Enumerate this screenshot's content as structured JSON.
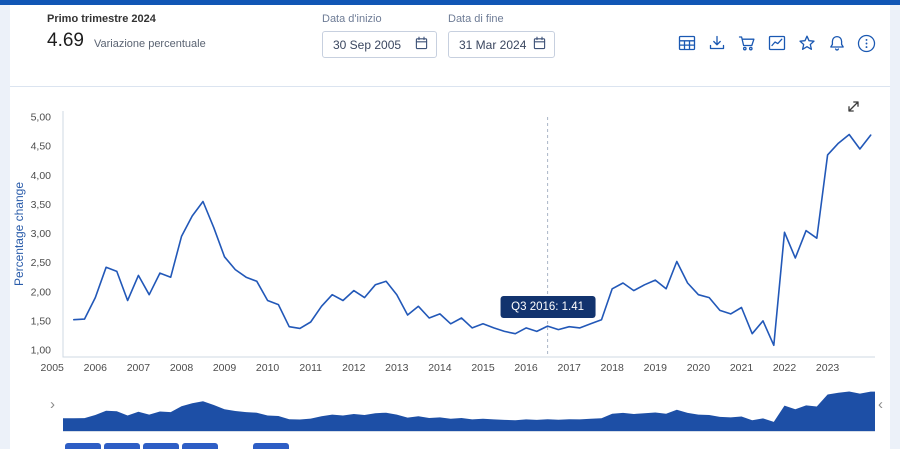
{
  "header": {
    "period_label": "Primo trimestre 2024",
    "value": "4.69",
    "value_caption": "Variazione percentuale",
    "start_date": {
      "label": "Data d'inizio",
      "value": "30 Sep 2005"
    },
    "end_date": {
      "label": "Data di fine",
      "value": "31 Mar 2024"
    },
    "toolbar_icons": [
      "table",
      "download",
      "cart",
      "line-chart",
      "star",
      "bell",
      "more-options"
    ]
  },
  "chart_data": {
    "type": "line",
    "title": "",
    "xlabel": "",
    "ylabel": "Percentage change",
    "ylim": [
      1.0,
      5.0
    ],
    "ytick_step": 0.5,
    "ytick_labels": [
      "5,00",
      "4,50",
      "4,00",
      "3,50",
      "3,00",
      "2,50",
      "2,00",
      "1,50",
      "1,00"
    ],
    "x_years": [
      "2005",
      "2006",
      "2007",
      "2008",
      "2009",
      "2010",
      "2011",
      "2012",
      "2013",
      "2014",
      "2015",
      "2016",
      "2017",
      "2018",
      "2019",
      "2020",
      "2021",
      "2022",
      "2023"
    ],
    "grid": false,
    "legend": false,
    "line_color": "#2258b8",
    "navigator_color": "#1d4fa6",
    "series": [
      {
        "name": "Variazione percentuale",
        "frequency": "quarterly",
        "start": {
          "year": 2005,
          "quarter": 3
        },
        "end": {
          "year": 2024,
          "quarter": 1
        },
        "values": [
          1.52,
          1.53,
          1.9,
          2.42,
          2.35,
          1.85,
          2.28,
          1.95,
          2.32,
          2.25,
          2.95,
          3.3,
          3.55,
          3.1,
          2.6,
          2.38,
          2.25,
          2.18,
          1.85,
          1.78,
          1.4,
          1.37,
          1.48,
          1.75,
          1.95,
          1.85,
          2.02,
          1.9,
          2.12,
          2.18,
          1.95,
          1.6,
          1.75,
          1.55,
          1.62,
          1.45,
          1.55,
          1.38,
          1.45,
          1.38,
          1.32,
          1.28,
          1.38,
          1.32,
          1.41,
          1.35,
          1.4,
          1.38,
          1.45,
          1.52,
          2.05,
          2.15,
          2.02,
          2.12,
          2.2,
          2.05,
          2.52,
          2.15,
          1.95,
          1.9,
          1.68,
          1.62,
          1.73,
          1.28,
          1.5,
          1.08,
          3.02,
          2.58,
          3.05,
          2.92,
          4.35,
          4.55,
          4.7,
          4.45,
          4.69
        ]
      }
    ],
    "tooltip": {
      "label": "Q3 2016: 1.41",
      "year": 2016,
      "quarter": 3,
      "value": 1.41
    }
  },
  "navigator": {
    "left_handle": "›",
    "right_handle": "‹"
  },
  "colors": {
    "accent_blue": "#1a58b2",
    "top_border": "#1156b5",
    "tooltip_bg": "#12336e",
    "line": "#2258b8",
    "navigator_fill": "#1d4fa6"
  }
}
